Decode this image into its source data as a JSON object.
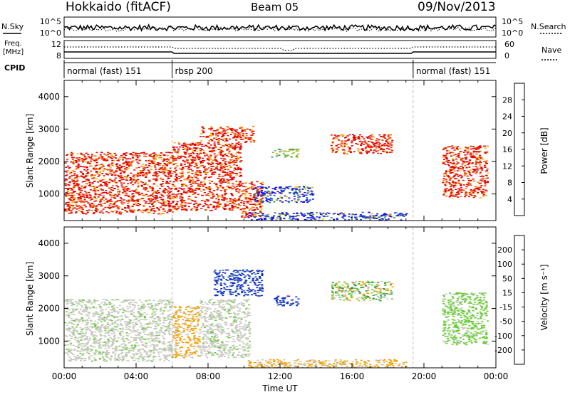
{
  "header": {
    "station": "Hokkaido (fitACF)",
    "beam": "Beam 05",
    "date": "09/Nov/2013"
  },
  "status_panels": {
    "nsky_label": "N.Sky",
    "nsearch_label": "N.Search",
    "freq_label_1": "Freq.",
    "freq_label_2": "[MHz]",
    "nave_label": "Nave",
    "cpid_label": "CPID",
    "noise_ticks_left": [
      "10^5",
      "10^0"
    ],
    "noise_ticks_right": [
      "10^5",
      "10^0"
    ],
    "freq_ticks": [
      "12",
      "8"
    ],
    "nave_ticks": [
      "60",
      "0"
    ]
  },
  "cpid_segments": [
    {
      "label": "normal (fast) 151",
      "start_h": 0,
      "end_h": 6
    },
    {
      "label": "rbsp 200",
      "start_h": 6,
      "end_h": 19.4
    },
    {
      "label": "normal (fast) 151",
      "start_h": 19.4,
      "end_h": 24
    }
  ],
  "chart_data": [
    {
      "type": "heatmap",
      "panel": "power",
      "ylabel": "Slant Range [km]",
      "ylim": [
        180,
        4500
      ],
      "xlim": [
        0,
        24
      ],
      "y_ticks": [
        "1000",
        "2000",
        "3000",
        "4000"
      ],
      "colorbar": {
        "label": "Power [dB]",
        "ticks": [
          "4",
          "8",
          "12",
          "16",
          "20",
          "24",
          "28"
        ],
        "colors": [
          "#1414e6",
          "#2850c8",
          "#2e8b57",
          "#7cc04a",
          "#f5b400",
          "#f07800",
          "#e61e00",
          "#e60000"
        ]
      },
      "regions": [
        {
          "x0": 0.0,
          "x1": 6.0,
          "y0": 400,
          "y1": 2300,
          "level": "high"
        },
        {
          "x0": 6.0,
          "x1": 9.8,
          "y0": 500,
          "y1": 2600,
          "level": "high"
        },
        {
          "x0": 7.5,
          "x1": 10.5,
          "y0": 2600,
          "y1": 3100,
          "level": "high"
        },
        {
          "x0": 9.8,
          "x1": 11.0,
          "y0": 300,
          "y1": 1400,
          "level": "high"
        },
        {
          "x0": 10.5,
          "x1": 13.8,
          "y0": 750,
          "y1": 1250,
          "level": "low"
        },
        {
          "x0": 11.5,
          "x1": 13.0,
          "y0": 2150,
          "y1": 2400,
          "level": "mid"
        },
        {
          "x0": 14.8,
          "x1": 18.2,
          "y0": 2250,
          "y1": 2850,
          "level": "high"
        },
        {
          "x0": 10.2,
          "x1": 19.0,
          "y0": 200,
          "y1": 450,
          "level": "low"
        },
        {
          "x0": 21.0,
          "x1": 23.5,
          "y0": 900,
          "y1": 2500,
          "level": "high"
        }
      ]
    },
    {
      "type": "heatmap",
      "panel": "velocity",
      "ylabel": "Slant Range [km]",
      "xlabel": "Time UT",
      "ylim": [
        180,
        4500
      ],
      "xlim": [
        0,
        24
      ],
      "x_ticks": [
        "00:00",
        "04:00",
        "08:00",
        "12:00",
        "16:00",
        "20:00",
        "00:00"
      ],
      "y_ticks": [
        "1000",
        "2000",
        "3000",
        "4000"
      ],
      "colorbar": {
        "label": "Velocity [m s⁻¹]",
        "ticks": [
          "200",
          "100",
          "50",
          "15",
          "-15",
          "-50",
          "-100",
          "-200"
        ],
        "colors": [
          "#1430c8",
          "#2e6bb4",
          "#2e8b57",
          "#66cc33",
          "#c8c8c0",
          "#f5a000",
          "#f07800",
          "#e64000",
          "#e60000"
        ]
      },
      "regions": [
        {
          "x0": 0.0,
          "x1": 6.0,
          "y0": 400,
          "y1": 2300,
          "level": "ground"
        },
        {
          "x0": 6.0,
          "x1": 7.5,
          "y0": 500,
          "y1": 2100,
          "level": "neg"
        },
        {
          "x0": 7.5,
          "x1": 10.3,
          "y0": 500,
          "y1": 2300,
          "level": "ground"
        },
        {
          "x0": 8.3,
          "x1": 11.0,
          "y0": 2400,
          "y1": 3200,
          "level": "pos"
        },
        {
          "x0": 11.6,
          "x1": 13.0,
          "y0": 2100,
          "y1": 2400,
          "level": "pos"
        },
        {
          "x0": 14.8,
          "x1": 18.2,
          "y0": 2250,
          "y1": 2850,
          "level": "mixed"
        },
        {
          "x0": 10.2,
          "x1": 19.0,
          "y0": 200,
          "y1": 450,
          "level": "neg"
        },
        {
          "x0": 21.0,
          "x1": 23.5,
          "y0": 900,
          "y1": 2500,
          "level": "green"
        }
      ]
    }
  ]
}
